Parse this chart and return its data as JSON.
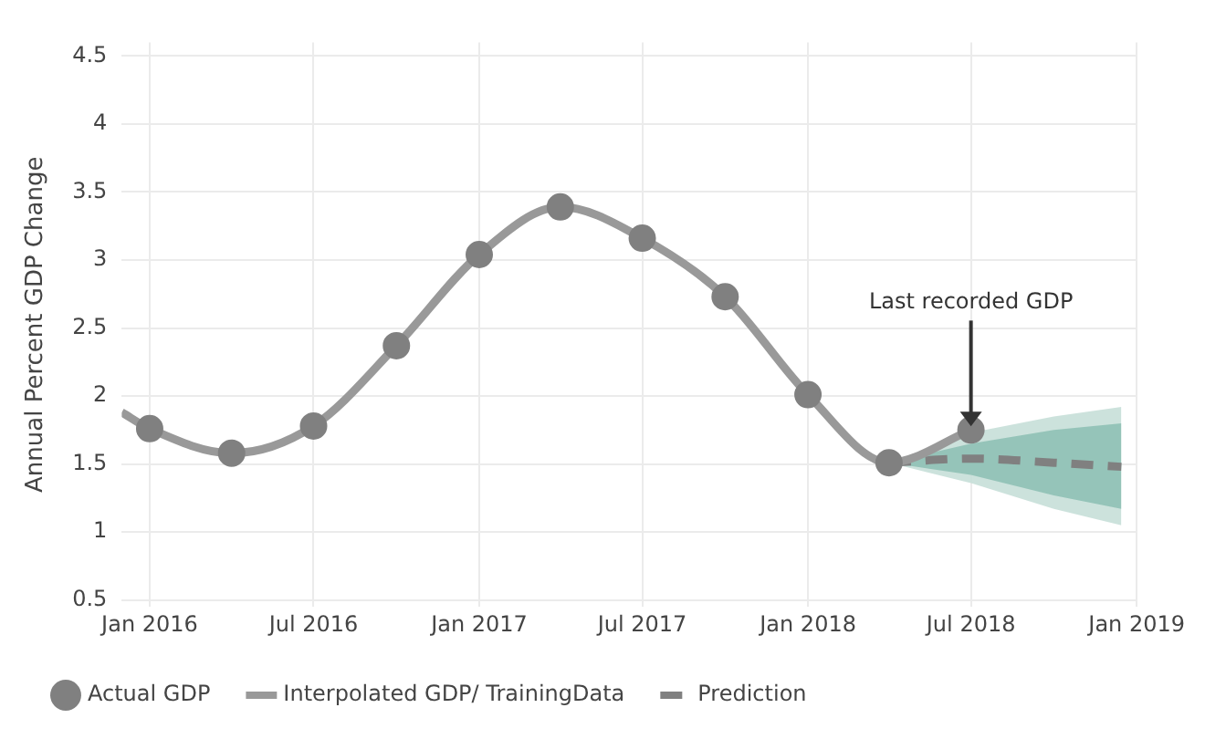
{
  "chart_data": {
    "type": "line",
    "ylabel": "Annual Percent GDP Change",
    "xlim": [
      "2015-12",
      "2019-01"
    ],
    "ylim": [
      0.45,
      4.6
    ],
    "xticks": [
      {
        "value": "2016-01",
        "label": "Jan 2016"
      },
      {
        "value": "2016-07",
        "label": "Jul 2016"
      },
      {
        "value": "2017-01",
        "label": "Jan 2017"
      },
      {
        "value": "2017-07",
        "label": "Jul 2017"
      },
      {
        "value": "2018-01",
        "label": "Jan 2018"
      },
      {
        "value": "2018-07",
        "label": "Jul 2018"
      },
      {
        "value": "2019-01",
        "label": "Jan 2019"
      }
    ],
    "yticks": [
      0.5,
      1,
      1.5,
      2,
      2.5,
      3,
      3.5,
      4,
      4.5
    ],
    "grid": true,
    "legend": "bottom",
    "series": [
      {
        "name": "Actual GDP",
        "type": "scatter",
        "marker": "circle",
        "color": "#808080",
        "x": [
          "2016-01",
          "2016-04",
          "2016-07",
          "2016-10",
          "2017-01",
          "2017-04",
          "2017-07",
          "2017-10",
          "2018-01",
          "2018-04",
          "2018-07"
        ],
        "values": [
          1.76,
          1.58,
          1.78,
          2.37,
          3.04,
          3.39,
          3.16,
          2.73,
          2.01,
          1.51,
          1.75
        ]
      },
      {
        "name": "Interpolated GDP/ TrainingData",
        "type": "line",
        "color": "#999999",
        "line_style": "solid",
        "x": [
          "2015-12",
          "2016-01",
          "2016-04",
          "2016-07",
          "2016-10",
          "2017-01",
          "2017-04",
          "2017-07",
          "2017-10",
          "2018-01",
          "2018-04",
          "2018-07"
        ],
        "values": [
          1.88,
          1.76,
          1.58,
          1.78,
          2.37,
          3.04,
          3.39,
          3.16,
          2.73,
          2.01,
          1.51,
          1.75
        ]
      },
      {
        "name": "Prediction",
        "type": "line",
        "color": "#808080",
        "line_style": "dashed",
        "x": [
          "2018-04",
          "2018-07",
          "2018-10",
          "2018-12-15"
        ],
        "values": [
          1.51,
          1.54,
          1.51,
          1.48
        ]
      },
      {
        "type": "line",
        "color": "#8fc1b5",
        "x": [
          "2018-04",
          "2018-07",
          "2018-10",
          "2018-12-15"
        ],
        "values": [
          null,
          null,
          null,
          null
        ],
        "lower": [
          1.51,
          1.42,
          1.27,
          1.17
        ],
        "upper": [
          1.51,
          1.65,
          1.75,
          1.8
        ]
      },
      {
        "type": "line",
        "color": "#c6dfd8",
        "x": [
          "2018-04",
          "2018-07",
          "2018-10",
          "2018-12-15"
        ],
        "values": [
          null,
          null,
          null,
          null
        ],
        "lower": [
          1.51,
          1.36,
          1.17,
          1.05
        ],
        "upper": [
          1.51,
          1.73,
          1.85,
          1.92
        ]
      }
    ],
    "annotations": [
      {
        "text": "Last recorded GDP",
        "x": "2018-07",
        "y": 1.75
      }
    ]
  }
}
